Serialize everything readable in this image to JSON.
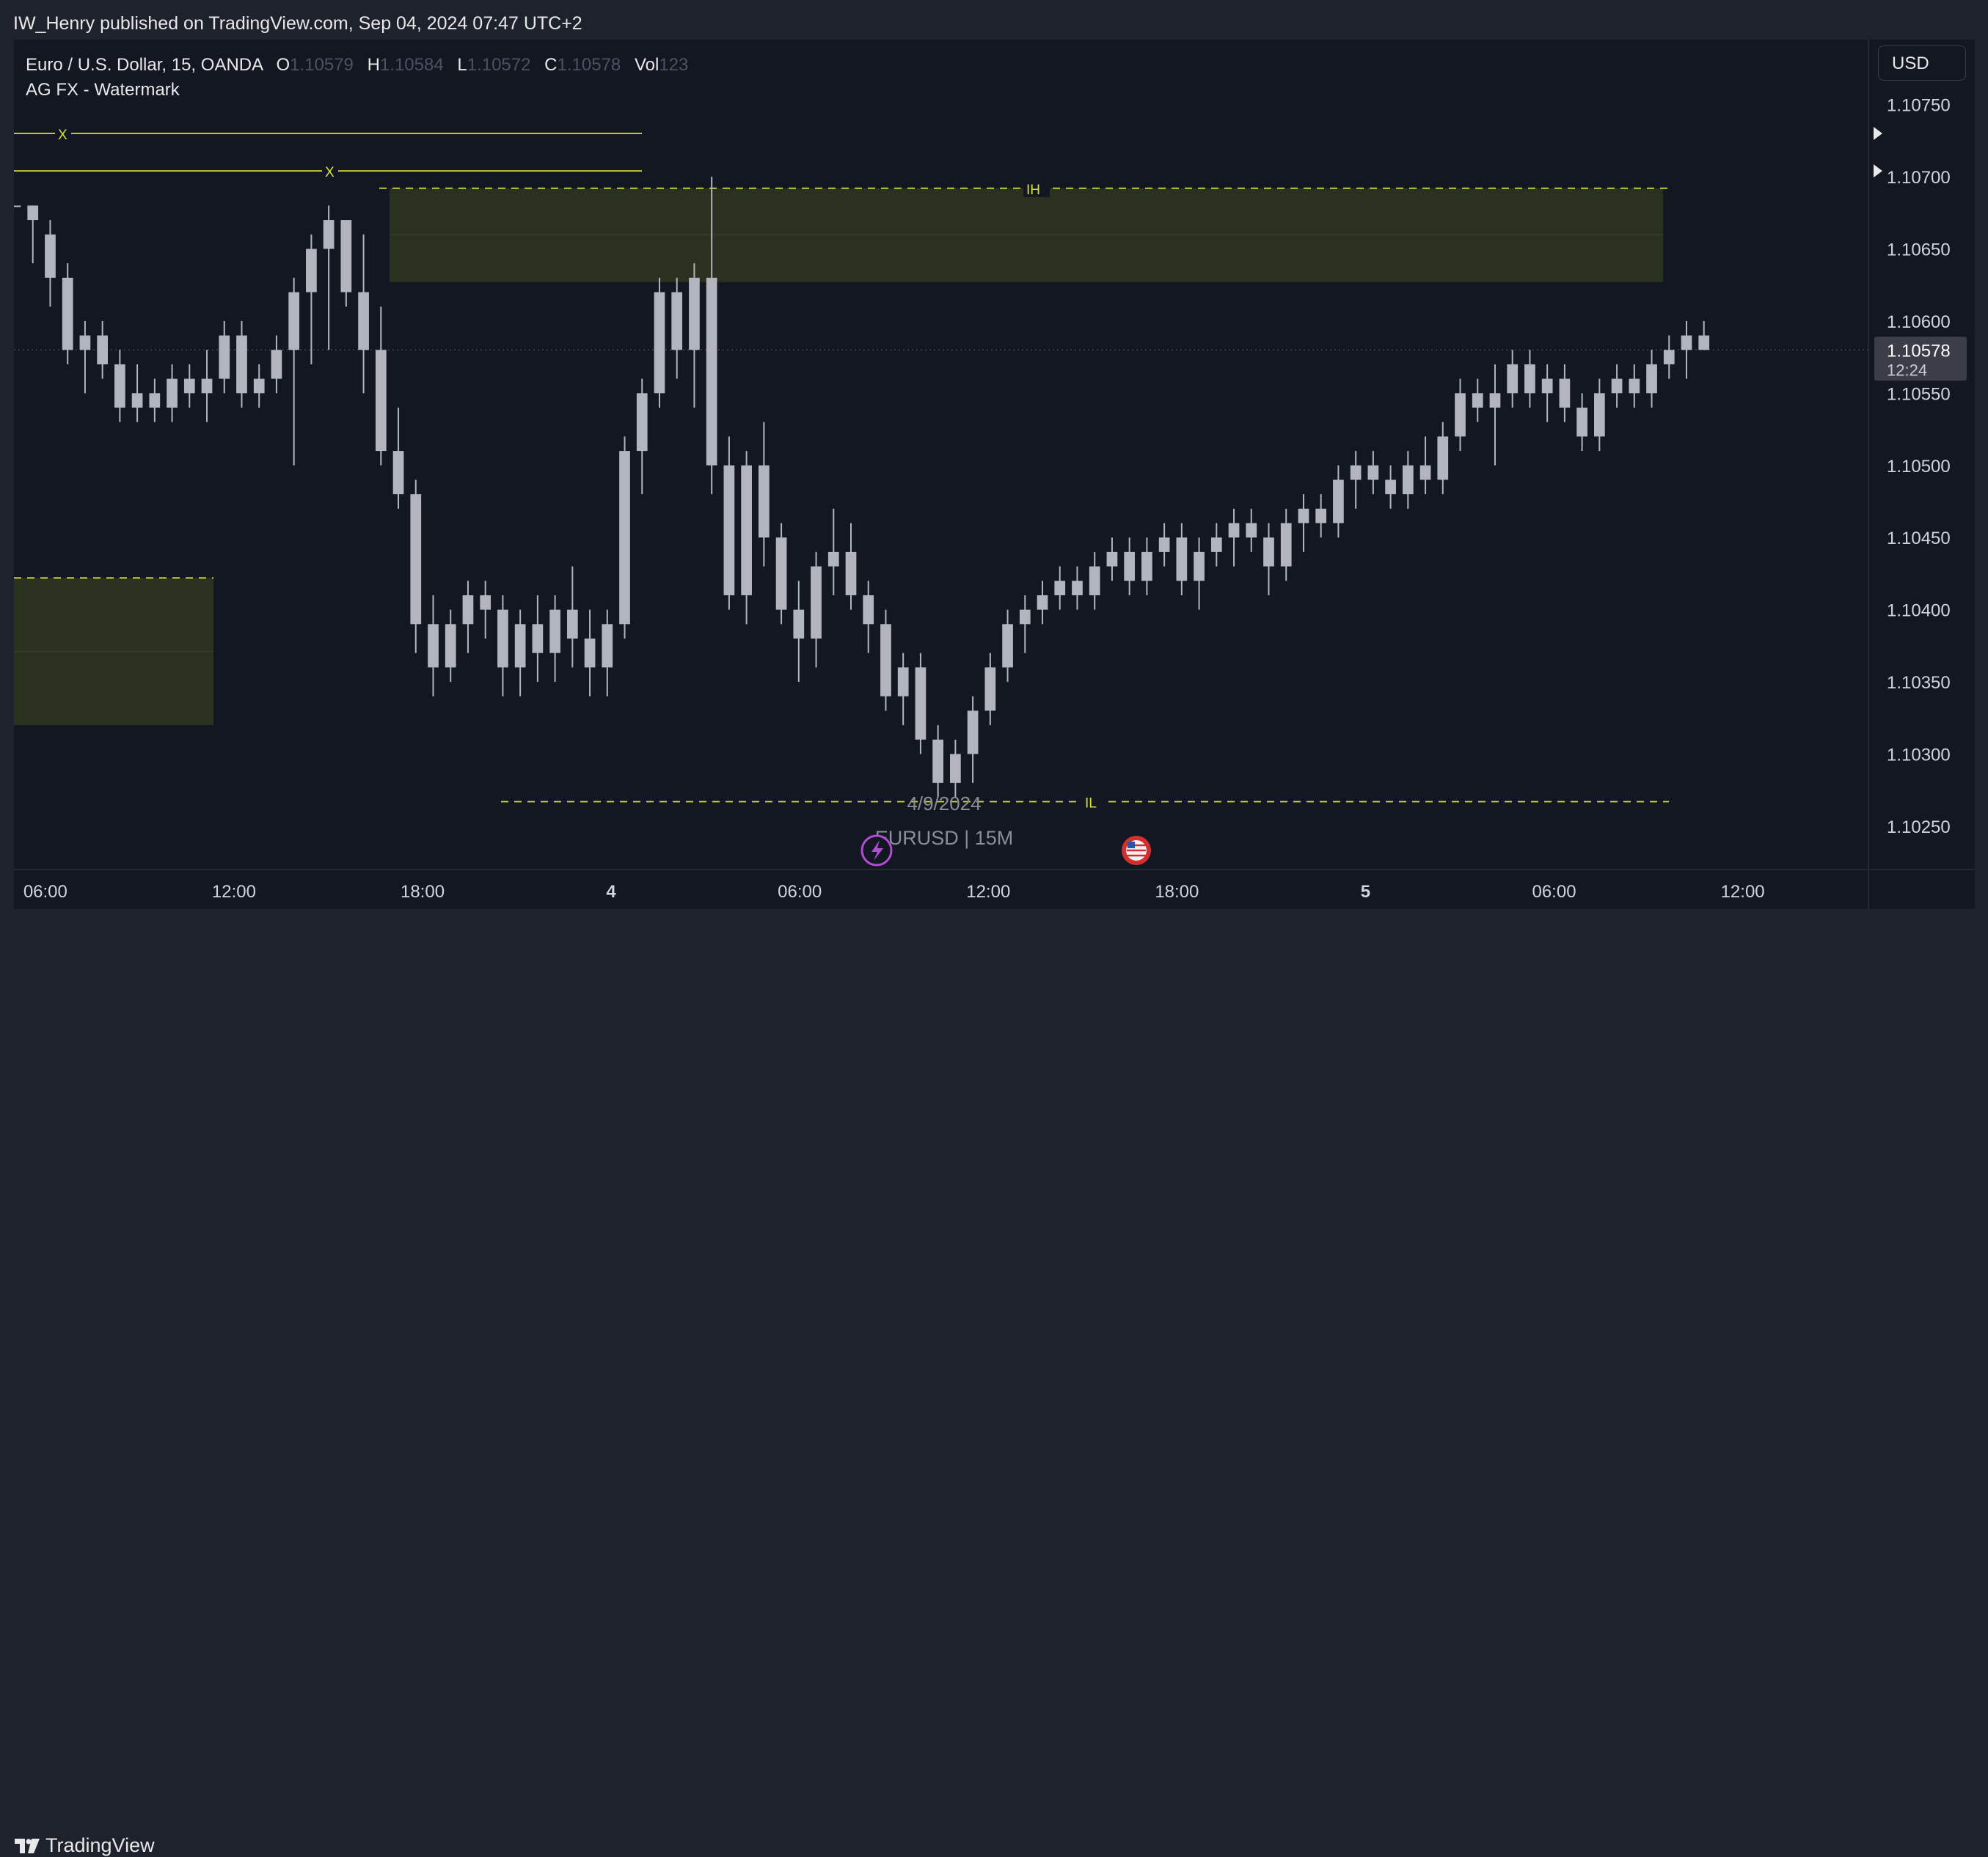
{
  "header": {
    "published_text": "IW_Henry published on TradingView.com, Sep 04, 2024 07:47 UTC+2"
  },
  "legend": {
    "symbol": "Euro / U.S. Dollar, 15, OANDA",
    "o_label": "O",
    "o_value": "1.10579",
    "h_label": "H",
    "h_value": "1.10584",
    "l_label": "L",
    "l_value": "1.10572",
    "c_label": "C",
    "c_value": "1.10578",
    "vol_label": "Vol",
    "vol_value": "123",
    "indicator": "AG FX - Watermark"
  },
  "currency_button": "USD",
  "footer": {
    "brand": "TradingView"
  },
  "colors": {
    "background": "#131722",
    "frame": "#1e222d",
    "candle": "#b2b5be",
    "level_line": "#d5e23a",
    "zone_fill": "#2b311f",
    "price_tag": "#3b3e48",
    "text": "#d1d4dc",
    "lightning_event": "#b24bd6",
    "us_flag_event": "#d32f2f"
  },
  "icons": [
    "tradingview-logo-icon",
    "lightning-event-icon",
    "us-flag-event-icon",
    "arrow-right-icon"
  ],
  "chart_data": {
    "type": "candlestick",
    "symbol": "EURUSD",
    "timeframe": "15",
    "ylim": [
      1.1022,
      1.10795
    ],
    "y_ticks": [
      1.1025,
      1.103,
      1.1035,
      1.104,
      1.1045,
      1.105,
      1.1055,
      1.106,
      1.1065,
      1.107,
      1.1075
    ],
    "y_tick_labels": [
      "1.10250",
      "1.10300",
      "1.10350",
      "1.10400",
      "1.10450",
      "1.10500",
      "1.10550",
      "1.10600",
      "1.10650",
      "1.10700",
      "1.10750"
    ],
    "x_ticks": [
      {
        "label": "06:00",
        "hour": 6
      },
      {
        "label": "12:00",
        "hour": 12
      },
      {
        "label": "18:00",
        "hour": 18
      },
      {
        "label": "4",
        "hour": 24
      },
      {
        "label": "06:00",
        "hour": 30
      },
      {
        "label": "12:00",
        "hour": 36
      },
      {
        "label": "18:00",
        "hour": 42
      },
      {
        "label": "5",
        "hour": 48
      },
      {
        "label": "06:00",
        "hour": 54
      },
      {
        "label": "12:00",
        "hour": 60
      }
    ],
    "x_start_hour": 5.0,
    "x_end_hour": 64.0,
    "candles": [
      {
        "o": 1.1068,
        "h": 1.1068,
        "l": 1.1068,
        "c": 1.1068
      },
      {
        "o": 1.1067,
        "h": 1.1068,
        "l": 1.1064,
        "c": 1.1068
      },
      {
        "o": 1.1066,
        "h": 1.1067,
        "l": 1.1061,
        "c": 1.1063
      },
      {
        "o": 1.1063,
        "h": 1.1064,
        "l": 1.1057,
        "c": 1.1058
      },
      {
        "o": 1.1058,
        "h": 1.106,
        "l": 1.1055,
        "c": 1.1059
      },
      {
        "o": 1.1059,
        "h": 1.106,
        "l": 1.1056,
        "c": 1.1057
      },
      {
        "o": 1.1057,
        "h": 1.1058,
        "l": 1.1053,
        "c": 1.1054
      },
      {
        "o": 1.1054,
        "h": 1.1057,
        "l": 1.1053,
        "c": 1.1055
      },
      {
        "o": 1.1055,
        "h": 1.1056,
        "l": 1.1053,
        "c": 1.1054
      },
      {
        "o": 1.1054,
        "h": 1.1057,
        "l": 1.1053,
        "c": 1.1056
      },
      {
        "o": 1.1056,
        "h": 1.1057,
        "l": 1.1054,
        "c": 1.1055
      },
      {
        "o": 1.1055,
        "h": 1.1058,
        "l": 1.1053,
        "c": 1.1056
      },
      {
        "o": 1.1056,
        "h": 1.106,
        "l": 1.1055,
        "c": 1.1059
      },
      {
        "o": 1.1059,
        "h": 1.106,
        "l": 1.1054,
        "c": 1.1055
      },
      {
        "o": 1.1055,
        "h": 1.1057,
        "l": 1.1054,
        "c": 1.1056
      },
      {
        "o": 1.1056,
        "h": 1.1059,
        "l": 1.1055,
        "c": 1.1058
      },
      {
        "o": 1.1058,
        "h": 1.1063,
        "l": 1.105,
        "c": 1.1062
      },
      {
        "o": 1.1062,
        "h": 1.1066,
        "l": 1.1057,
        "c": 1.1065
      },
      {
        "o": 1.1065,
        "h": 1.1068,
        "l": 1.1058,
        "c": 1.1067
      },
      {
        "o": 1.1067,
        "h": 1.1067,
        "l": 1.1061,
        "c": 1.1062
      },
      {
        "o": 1.1062,
        "h": 1.1066,
        "l": 1.1055,
        "c": 1.1058
      },
      {
        "o": 1.1058,
        "h": 1.1061,
        "l": 1.105,
        "c": 1.1051
      },
      {
        "o": 1.1051,
        "h": 1.1054,
        "l": 1.1047,
        "c": 1.1048
      },
      {
        "o": 1.1048,
        "h": 1.1049,
        "l": 1.1037,
        "c": 1.1039
      },
      {
        "o": 1.1039,
        "h": 1.1041,
        "l": 1.1034,
        "c": 1.1036
      },
      {
        "o": 1.1036,
        "h": 1.104,
        "l": 1.1035,
        "c": 1.1039
      },
      {
        "o": 1.1039,
        "h": 1.1042,
        "l": 1.1037,
        "c": 1.1041
      },
      {
        "o": 1.1041,
        "h": 1.1042,
        "l": 1.1038,
        "c": 1.104
      },
      {
        "o": 1.104,
        "h": 1.1041,
        "l": 1.1034,
        "c": 1.1036
      },
      {
        "o": 1.1036,
        "h": 1.104,
        "l": 1.1034,
        "c": 1.1039
      },
      {
        "o": 1.1039,
        "h": 1.1041,
        "l": 1.1035,
        "c": 1.1037
      },
      {
        "o": 1.1037,
        "h": 1.1041,
        "l": 1.1035,
        "c": 1.104
      },
      {
        "o": 1.104,
        "h": 1.1043,
        "l": 1.1036,
        "c": 1.1038
      },
      {
        "o": 1.1038,
        "h": 1.104,
        "l": 1.1034,
        "c": 1.1036
      },
      {
        "o": 1.1036,
        "h": 1.104,
        "l": 1.1034,
        "c": 1.1039
      },
      {
        "o": 1.1039,
        "h": 1.1052,
        "l": 1.1038,
        "c": 1.1051
      },
      {
        "o": 1.1051,
        "h": 1.1056,
        "l": 1.1048,
        "c": 1.1055
      },
      {
        "o": 1.1055,
        "h": 1.1063,
        "l": 1.1054,
        "c": 1.1062
      },
      {
        "o": 1.1062,
        "h": 1.1063,
        "l": 1.1056,
        "c": 1.1058
      },
      {
        "o": 1.1058,
        "h": 1.1064,
        "l": 1.1054,
        "c": 1.1063
      },
      {
        "o": 1.1063,
        "h": 1.107,
        "l": 1.1048,
        "c": 1.105
      },
      {
        "o": 1.105,
        "h": 1.1052,
        "l": 1.104,
        "c": 1.1041
      },
      {
        "o": 1.1041,
        "h": 1.1051,
        "l": 1.1039,
        "c": 1.105
      },
      {
        "o": 1.105,
        "h": 1.1053,
        "l": 1.1043,
        "c": 1.1045
      },
      {
        "o": 1.1045,
        "h": 1.1046,
        "l": 1.1039,
        "c": 1.104
      },
      {
        "o": 1.104,
        "h": 1.1042,
        "l": 1.1035,
        "c": 1.1038
      },
      {
        "o": 1.1038,
        "h": 1.1044,
        "l": 1.1036,
        "c": 1.1043
      },
      {
        "o": 1.1043,
        "h": 1.1047,
        "l": 1.1041,
        "c": 1.1044
      },
      {
        "o": 1.1044,
        "h": 1.1046,
        "l": 1.104,
        "c": 1.1041
      },
      {
        "o": 1.1041,
        "h": 1.1042,
        "l": 1.1037,
        "c": 1.1039
      },
      {
        "o": 1.1039,
        "h": 1.104,
        "l": 1.1033,
        "c": 1.1034
      },
      {
        "o": 1.1034,
        "h": 1.1037,
        "l": 1.1032,
        "c": 1.1036
      },
      {
        "o": 1.1036,
        "h": 1.1037,
        "l": 1.103,
        "c": 1.1031
      },
      {
        "o": 1.1031,
        "h": 1.1032,
        "l": 1.1027,
        "c": 1.1028
      },
      {
        "o": 1.1028,
        "h": 1.1031,
        "l": 1.1027,
        "c": 1.103
      },
      {
        "o": 1.103,
        "h": 1.1034,
        "l": 1.1028,
        "c": 1.1033
      },
      {
        "o": 1.1033,
        "h": 1.1037,
        "l": 1.1032,
        "c": 1.1036
      },
      {
        "o": 1.1036,
        "h": 1.104,
        "l": 1.1035,
        "c": 1.1039
      },
      {
        "o": 1.1039,
        "h": 1.1041,
        "l": 1.1037,
        "c": 1.104
      },
      {
        "o": 1.104,
        "h": 1.1042,
        "l": 1.1039,
        "c": 1.1041
      },
      {
        "o": 1.1041,
        "h": 1.1043,
        "l": 1.104,
        "c": 1.1042
      },
      {
        "o": 1.1042,
        "h": 1.1043,
        "l": 1.104,
        "c": 1.1041
      },
      {
        "o": 1.1041,
        "h": 1.1044,
        "l": 1.104,
        "c": 1.1043
      },
      {
        "o": 1.1043,
        "h": 1.1045,
        "l": 1.1042,
        "c": 1.1044
      },
      {
        "o": 1.1044,
        "h": 1.1045,
        "l": 1.1041,
        "c": 1.1042
      },
      {
        "o": 1.1042,
        "h": 1.1045,
        "l": 1.1041,
        "c": 1.1044
      },
      {
        "o": 1.1044,
        "h": 1.1046,
        "l": 1.1043,
        "c": 1.1045
      },
      {
        "o": 1.1045,
        "h": 1.1046,
        "l": 1.1041,
        "c": 1.1042
      },
      {
        "o": 1.1042,
        "h": 1.1045,
        "l": 1.104,
        "c": 1.1044
      },
      {
        "o": 1.1044,
        "h": 1.1046,
        "l": 1.1043,
        "c": 1.1045
      },
      {
        "o": 1.1045,
        "h": 1.1047,
        "l": 1.1043,
        "c": 1.1046
      },
      {
        "o": 1.1046,
        "h": 1.1047,
        "l": 1.1044,
        "c": 1.1045
      },
      {
        "o": 1.1045,
        "h": 1.1046,
        "l": 1.1041,
        "c": 1.1043
      },
      {
        "o": 1.1043,
        "h": 1.1047,
        "l": 1.1042,
        "c": 1.1046
      },
      {
        "o": 1.1046,
        "h": 1.1048,
        "l": 1.1044,
        "c": 1.1047
      },
      {
        "o": 1.1047,
        "h": 1.1048,
        "l": 1.1045,
        "c": 1.1046
      },
      {
        "o": 1.1046,
        "h": 1.105,
        "l": 1.1045,
        "c": 1.1049
      },
      {
        "o": 1.1049,
        "h": 1.1051,
        "l": 1.1047,
        "c": 1.105
      },
      {
        "o": 1.105,
        "h": 1.1051,
        "l": 1.1048,
        "c": 1.1049
      },
      {
        "o": 1.1049,
        "h": 1.105,
        "l": 1.1047,
        "c": 1.1048
      },
      {
        "o": 1.1048,
        "h": 1.1051,
        "l": 1.1047,
        "c": 1.105
      },
      {
        "o": 1.105,
        "h": 1.1052,
        "l": 1.1048,
        "c": 1.1049
      },
      {
        "o": 1.1049,
        "h": 1.1053,
        "l": 1.1048,
        "c": 1.1052
      },
      {
        "o": 1.1052,
        "h": 1.1056,
        "l": 1.1051,
        "c": 1.1055
      },
      {
        "o": 1.1055,
        "h": 1.1056,
        "l": 1.1053,
        "c": 1.1054
      },
      {
        "o": 1.1054,
        "h": 1.1057,
        "l": 1.105,
        "c": 1.1055
      },
      {
        "o": 1.1055,
        "h": 1.1058,
        "l": 1.1054,
        "c": 1.1057
      },
      {
        "o": 1.1057,
        "h": 1.1058,
        "l": 1.1054,
        "c": 1.1055
      },
      {
        "o": 1.1055,
        "h": 1.1057,
        "l": 1.1053,
        "c": 1.1056
      },
      {
        "o": 1.1056,
        "h": 1.1057,
        "l": 1.1053,
        "c": 1.1054
      },
      {
        "o": 1.1054,
        "h": 1.1055,
        "l": 1.1051,
        "c": 1.1052
      },
      {
        "o": 1.1052,
        "h": 1.1056,
        "l": 1.1051,
        "c": 1.1055
      },
      {
        "o": 1.1055,
        "h": 1.1057,
        "l": 1.1054,
        "c": 1.1056
      },
      {
        "o": 1.1056,
        "h": 1.1057,
        "l": 1.1054,
        "c": 1.1055
      },
      {
        "o": 1.1055,
        "h": 1.1058,
        "l": 1.1054,
        "c": 1.1057
      },
      {
        "o": 1.1057,
        "h": 1.1059,
        "l": 1.1056,
        "c": 1.1058
      },
      {
        "o": 1.1058,
        "h": 1.106,
        "l": 1.1056,
        "c": 1.1059
      },
      {
        "o": 1.1059,
        "h": 1.106,
        "l": 1.1058,
        "c": 1.1058
      }
    ],
    "current_price": "1.10578",
    "countdown": "12:24",
    "levels": [
      {
        "label": "X",
        "value": 1.1073,
        "kind": "solid"
      },
      {
        "label": "X",
        "value": 1.10704,
        "kind": "solid"
      },
      {
        "label": "IH",
        "value": 1.10692,
        "kind": "dashed"
      },
      {
        "label": "IL",
        "value": 1.10267,
        "kind": "dashed"
      },
      {
        "label": "",
        "value": 1.10422,
        "kind": "dashed"
      }
    ],
    "zones": [
      {
        "top": 1.10692,
        "bottom": 1.10627,
        "mid": 1.1066
      },
      {
        "top": 1.10422,
        "bottom": 1.1032,
        "mid": 1.10371
      }
    ],
    "watermark": {
      "date": "4/9/2024",
      "title": "EURUSD | 15M"
    }
  }
}
